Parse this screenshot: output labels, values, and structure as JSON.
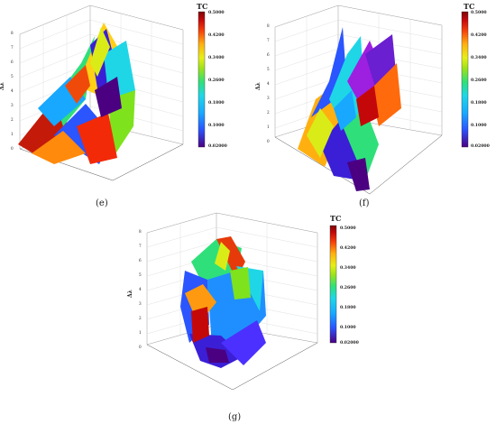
{
  "chart_data": [
    {
      "type": "surface3d",
      "panel_label": "(e)",
      "zlabel": "Δλ",
      "colorbar": {
        "title": "TC",
        "ticks": [
          "0.5000",
          "0.4200",
          "0.3400",
          "0.2600",
          "0.1800",
          "0.1000",
          "0.02000"
        ],
        "range": [
          0.02,
          0.5
        ]
      },
      "z_ticks": [
        "0",
        "1",
        "2",
        "3",
        "4",
        "5",
        "6",
        "7",
        "8"
      ],
      "zlim": [
        0,
        8
      ]
    },
    {
      "type": "surface3d",
      "panel_label": "(f)",
      "zlabel": "Δλ",
      "colorbar": {
        "title": "TC",
        "ticks": [
          "0.5000",
          "0.4200",
          "0.3400",
          "0.2600",
          "0.1800",
          "0.1000",
          "0.02000"
        ],
        "range": [
          0.02,
          0.5
        ]
      },
      "z_ticks": [
        "0",
        "1",
        "2",
        "3",
        "4",
        "5",
        "6",
        "7",
        "8"
      ],
      "zlim": [
        0,
        8
      ]
    },
    {
      "type": "surface3d",
      "panel_label": "(g)",
      "zlabel": "Δλ",
      "colorbar": {
        "title": "TC",
        "ticks": [
          "0.5000",
          "0.4200",
          "0.3400",
          "0.2600",
          "0.1800",
          "0.1000",
          "0.02000"
        ],
        "range": [
          0.02,
          0.5
        ]
      },
      "z_ticks": [
        "0",
        "1",
        "2",
        "3",
        "4",
        "5",
        "6",
        "7",
        "8"
      ],
      "zlim": [
        0,
        8
      ]
    }
  ],
  "colorscale": [
    "#4b0082",
    "#3a1fd6",
    "#2a55ff",
    "#18a8ff",
    "#1fd6e6",
    "#2fe07a",
    "#7ee21d",
    "#d9ec18",
    "#ffc412",
    "#ff7a0c",
    "#f22a08",
    "#c4080a",
    "#7c0606"
  ]
}
